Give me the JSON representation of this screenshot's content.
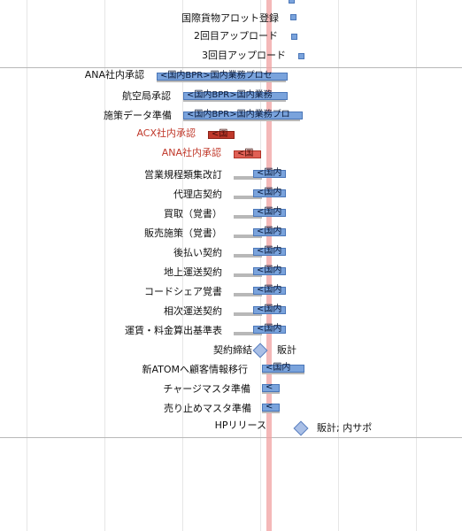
{
  "tasks": [
    {
      "label": "国際貨物アロット登録"
    },
    {
      "label": "2回目アップロード"
    },
    {
      "label": "3回目アップロード"
    },
    {
      "label": "ANA社内承認",
      "bar": "<国内BPR>国内業務プロセ"
    },
    {
      "label": "航空局承認",
      "bar": "<国内BPR>国内業務"
    },
    {
      "label": "施策データ準備",
      "bar": "<国内BPR>国内業務プロ"
    },
    {
      "label": "ACX社内承認",
      "bar": "<国"
    },
    {
      "label": "ANA社内承認",
      "bar": "<国"
    },
    {
      "label": "営業規程類集改訂",
      "bar": "<国内"
    },
    {
      "label": "代理店契約",
      "bar": "<国内"
    },
    {
      "label": "買取（覚書）",
      "bar": "<国内"
    },
    {
      "label": "販売施策（覚書）",
      "bar": "<国内"
    },
    {
      "label": "後払い契約",
      "bar": "<国内"
    },
    {
      "label": "地上運送契約",
      "bar": "<国内"
    },
    {
      "label": "コードシェア覚書",
      "bar": "<国内"
    },
    {
      "label": "相次運送契約",
      "bar": "<国内"
    },
    {
      "label": "運賃・料金算出基準表",
      "bar": "<国内"
    },
    {
      "label": "契約締結",
      "milestone_label": "販計"
    },
    {
      "label": "新ATOMへ顧客情報移行",
      "bar": "<国内"
    },
    {
      "label": "チャージマスタ準備",
      "bar": "<"
    },
    {
      "label": "売り止めマスタ準備",
      "bar": "<"
    },
    {
      "label": "HPリリース",
      "milestone_label": "販計; 内サポ"
    }
  ]
}
